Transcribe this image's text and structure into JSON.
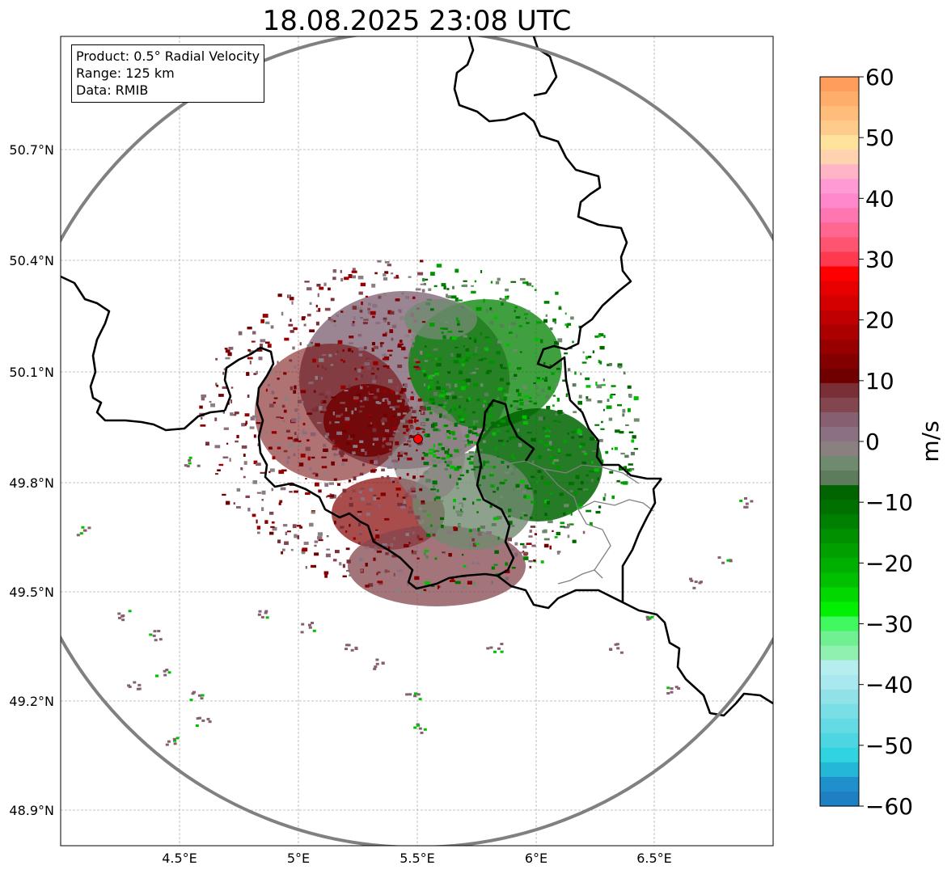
{
  "title": "18.08.2025 23:08 UTC",
  "info_box": {
    "product": "Product: 0.5° Radial Velocity",
    "range": "Range: 125 km",
    "data": "Data: RMIB"
  },
  "axes": {
    "lon_ticks": [
      "4.5°E",
      "5°E",
      "5.5°E",
      "6°E",
      "6.5°E"
    ],
    "lat_ticks": [
      "50.7°N",
      "50.4°N",
      "50.1°N",
      "49.8°N",
      "49.5°N",
      "49.2°N",
      "48.9°N"
    ]
  },
  "colorbar": {
    "label": "m/s",
    "ticks": [
      "60",
      "50",
      "40",
      "30",
      "20",
      "10",
      "0",
      "−10",
      "−20",
      "−30",
      "−40",
      "−50",
      "−60"
    ],
    "range": [
      -60,
      60
    ],
    "colors_top_to_bottom": [
      "#ff9e5a",
      "#ffad6a",
      "#ffbc7a",
      "#ffcb8a",
      "#ffe39c",
      "#ffd3b0",
      "#ffb5c5",
      "#ff9ad5",
      "#ff88cc",
      "#ff76b0",
      "#ff6690",
      "#ff5470",
      "#ff3a50",
      "#ff0000",
      "#e80000",
      "#d40000",
      "#c00000",
      "#ac0000",
      "#980000",
      "#840000",
      "#700000",
      "#7a2e35",
      "#84464e",
      "#866070",
      "#8a7080",
      "#8a8080",
      "#708a70",
      "#5c7c5c",
      "#006400",
      "#007000",
      "#008000",
      "#009000",
      "#00a000",
      "#00b000",
      "#00c000",
      "#00d800",
      "#00f000",
      "#40f860",
      "#70f090",
      "#90f0b0",
      "#b6eef0",
      "#a8e8ee",
      "#90e2e8",
      "#7adee6",
      "#64dae4",
      "#4cd6e2",
      "#30d4e0",
      "#24b8d6",
      "#2090cc",
      "#1f7fc3"
    ],
    "color_anchor_values": {
      "positive_end": "#ff9e5a",
      "zero": "#8a8080",
      "negative_end": "#1f7fc3"
    }
  },
  "radar_site": {
    "marker_color": "#ff0000"
  },
  "colors": {
    "range_ring": "#808080",
    "borders": "#000000",
    "admin_borders": "#808080",
    "gridlines": "#b0b0b0"
  }
}
